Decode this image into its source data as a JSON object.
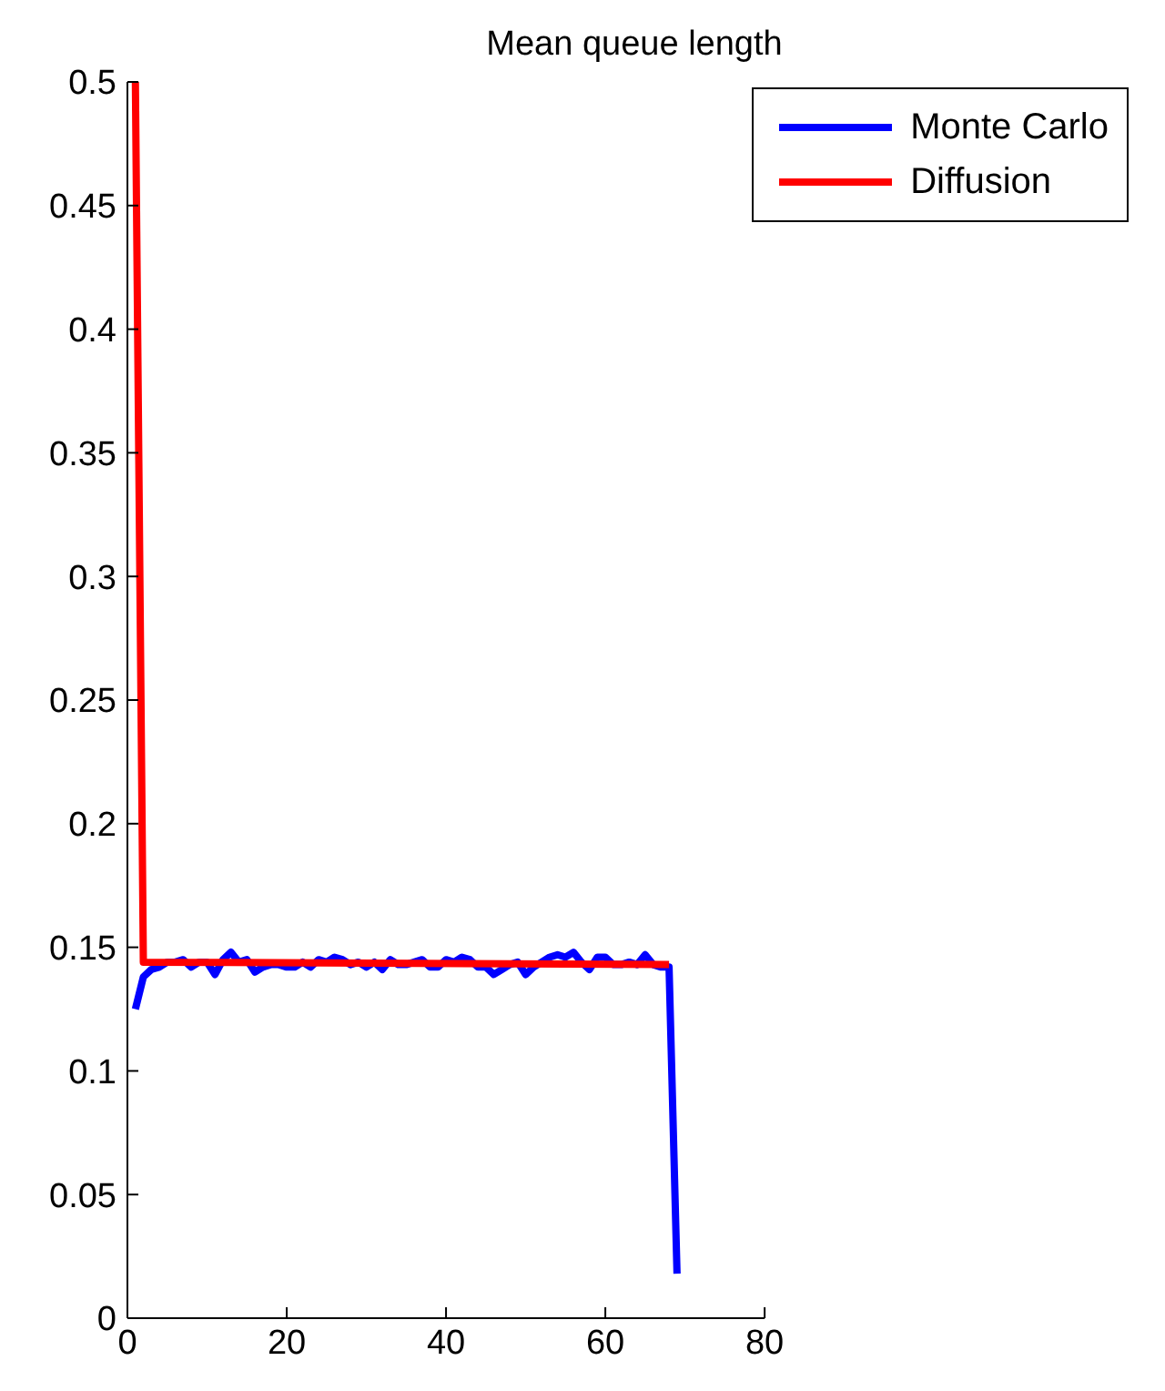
{
  "chart_data": {
    "type": "line",
    "title": "Mean queue length",
    "series": [
      {
        "name": "Monte Carlo",
        "color": "#0000ff",
        "x": [
          1,
          2,
          3,
          4,
          5,
          6,
          7,
          8,
          9,
          10,
          11,
          12,
          13,
          14,
          15,
          16,
          17,
          18,
          19,
          20,
          21,
          22,
          23,
          24,
          25,
          26,
          27,
          28,
          29,
          30,
          31,
          32,
          33,
          34,
          35,
          36,
          37,
          38,
          39,
          40,
          41,
          42,
          43,
          44,
          45,
          46,
          47,
          48,
          49,
          50,
          51,
          52,
          53,
          54,
          55,
          56,
          57,
          58,
          59,
          60,
          61,
          62,
          63,
          64,
          65,
          66,
          67,
          68,
          69
        ],
        "values": [
          0.125,
          0.138,
          0.141,
          0.142,
          0.144,
          0.144,
          0.145,
          0.142,
          0.144,
          0.144,
          0.139,
          0.145,
          0.148,
          0.144,
          0.145,
          0.14,
          0.142,
          0.143,
          0.143,
          0.142,
          0.142,
          0.144,
          0.142,
          0.145,
          0.144,
          0.146,
          0.145,
          0.143,
          0.144,
          0.142,
          0.144,
          0.141,
          0.145,
          0.143,
          0.143,
          0.144,
          0.145,
          0.142,
          0.142,
          0.145,
          0.144,
          0.146,
          0.145,
          0.142,
          0.142,
          0.139,
          0.141,
          0.143,
          0.144,
          0.139,
          0.142,
          0.144,
          0.146,
          0.147,
          0.146,
          0.148,
          0.144,
          0.141,
          0.146,
          0.146,
          0.143,
          0.143,
          0.144,
          0.143,
          0.147,
          0.143,
          0.142,
          0.142,
          0.018
        ]
      },
      {
        "name": "Diffusion",
        "color": "#ff0000",
        "x": [
          1,
          2,
          68
        ],
        "values": [
          0.5,
          0.144,
          0.143
        ]
      }
    ],
    "xlim": [
      0,
      80
    ],
    "xticks": [
      0,
      20,
      40,
      60,
      80
    ],
    "ylim": [
      0,
      0.5
    ],
    "yticks": [
      0,
      0.05,
      0.1,
      0.15,
      0.2,
      0.25,
      0.3,
      0.35,
      0.4,
      0.45,
      0.5
    ],
    "legend": "top right",
    "grid": false,
    "marker": "none",
    "line_style": "solid"
  }
}
